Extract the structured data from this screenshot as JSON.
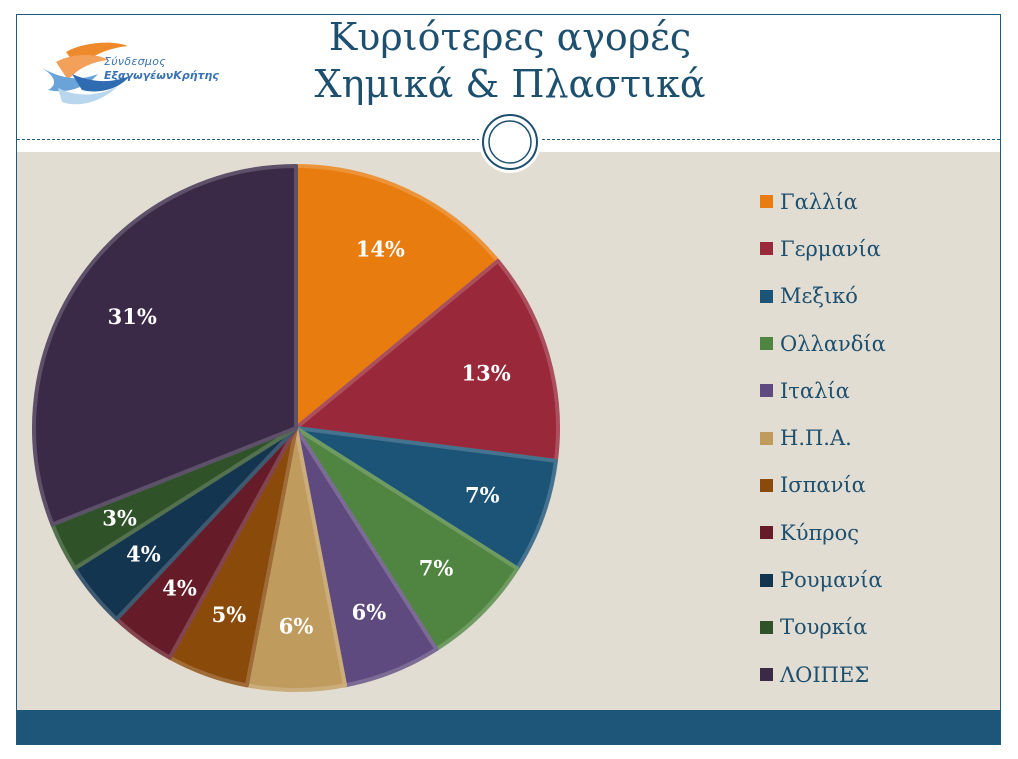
{
  "header": {
    "title_line1": "Κυριότερες αγορές",
    "title_line2": "Χημικά & Πλαστικά",
    "logo_line1": "Σύνδεσμος",
    "logo_line2": "ΕξαγωγέωνΚρήτης"
  },
  "chart_data": {
    "type": "pie",
    "title": "Κυριότερες αγορές Χημικά & Πλαστικά",
    "legend_position": "right",
    "slices": [
      {
        "label": "Γαλλία",
        "value": 14,
        "display": "14%",
        "color": "#e87c0e"
      },
      {
        "label": "Γερμανία",
        "value": 13,
        "display": "13%",
        "color": "#98283a"
      },
      {
        "label": "Μεξικό",
        "value": 7,
        "display": "7%",
        "color": "#1c5477"
      },
      {
        "label": "Ολλανδία",
        "value": 7,
        "display": "7%",
        "color": "#4f8540"
      },
      {
        "label": "Ιταλία",
        "value": 6,
        "display": "6%",
        "color": "#5e4a7e"
      },
      {
        "label": "Η.Π.Α.",
        "value": 6,
        "display": "6%",
        "color": "#bf9b5e"
      },
      {
        "label": "Ισπανία",
        "value": 5,
        "display": "5%",
        "color": "#8a4a0a"
      },
      {
        "label": "Κύπρος",
        "value": 4,
        "display": "4%",
        "color": "#661c28"
      },
      {
        "label": "Ρουμανία",
        "value": 4,
        "display": "4%",
        "color": "#143550"
      },
      {
        "label": "Τουρκία",
        "value": 3,
        "display": "3%",
        "color": "#2f5228"
      },
      {
        "label": "ΛΟΙΠΕΣ",
        "value": 31,
        "display": "31%",
        "color": "#3a2a48"
      }
    ]
  }
}
